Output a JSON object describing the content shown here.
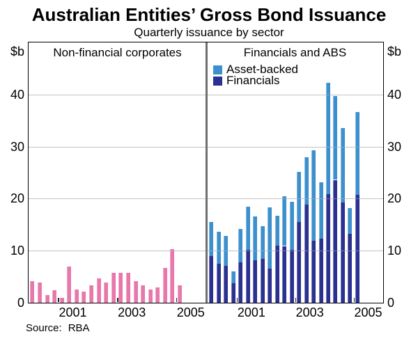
{
  "page": {
    "title": "Australian Entities’ Gross Bond Issuance",
    "subtitle": "Quarterly issuance by sector",
    "unit_left": "$b",
    "unit_right": "$b",
    "source_label": "Source:",
    "source_value": "RBA"
  },
  "colors": {
    "pink": "#E877AC",
    "financials_navy": "#2B3191",
    "asset_backed_blue": "#3D90CE",
    "gridline": "#C3C3C3",
    "divider_gray": "#707070",
    "frame_black": "#000000"
  },
  "chart_data": [
    {
      "type": "bar",
      "panel": "left",
      "title": "Non-financial corporates",
      "ylabel": "$b",
      "ylim": [
        0,
        50
      ],
      "yticks": [
        0,
        10,
        20,
        30,
        40
      ],
      "grid": true,
      "x_axis_quarter_span": [
        "2000Q1",
        "2005Q4"
      ],
      "xtick_labels": [
        "2001",
        "2003",
        "2005"
      ],
      "categories": [
        "2000Q1",
        "2000Q2",
        "2000Q3",
        "2000Q4",
        "2001Q1",
        "2001Q2",
        "2001Q3",
        "2001Q4",
        "2002Q1",
        "2002Q2",
        "2002Q3",
        "2002Q4",
        "2003Q1",
        "2003Q2",
        "2003Q3",
        "2003Q4",
        "2004Q1",
        "2004Q2",
        "2004Q3",
        "2004Q4",
        "2005Q1"
      ],
      "values": [
        4.2,
        3.9,
        1.5,
        2.4,
        0.9,
        6.9,
        2.6,
        2.2,
        3.3,
        4.7,
        3.9,
        5.7,
        5.7,
        5.7,
        4.1,
        3.4,
        2.5,
        2.9,
        6.7,
        10.3,
        3.3
      ],
      "bar_color": "#E877AC"
    },
    {
      "type": "stacked-bar",
      "panel": "right",
      "title": "Financials and ABS",
      "ylabel": "$b",
      "ylim": [
        0,
        50
      ],
      "yticks": [
        0,
        10,
        20,
        30,
        40
      ],
      "grid": true,
      "legend_position": "top-left",
      "x_axis_quarter_span": [
        "2000Q1",
        "2005Q4"
      ],
      "xtick_labels": [
        "2001",
        "2003",
        "2005"
      ],
      "categories": [
        "2000Q1",
        "2000Q2",
        "2000Q3",
        "2000Q4",
        "2001Q1",
        "2001Q2",
        "2001Q3",
        "2001Q4",
        "2002Q1",
        "2002Q2",
        "2002Q3",
        "2002Q4",
        "2003Q1",
        "2003Q2",
        "2003Q3",
        "2003Q4",
        "2004Q1",
        "2004Q2",
        "2004Q3",
        "2004Q4",
        "2005Q1"
      ],
      "series": [
        {
          "name": "Financials",
          "color": "#2B3191",
          "values": [
            8.9,
            7.5,
            7.1,
            3.8,
            7.7,
            10.2,
            8.1,
            8.4,
            6.5,
            11.0,
            10.9,
            10.2,
            15.5,
            18.8,
            11.9,
            12.3,
            20.8,
            23.6,
            19.3,
            13.3,
            20.7
          ]
        },
        {
          "name": "Asset-backed",
          "color": "#3D90CE",
          "values": [
            6.6,
            6.2,
            5.8,
            2.2,
            6.5,
            8.3,
            8.5,
            6.3,
            11.8,
            5.7,
            9.5,
            9.2,
            9.7,
            9.2,
            17.4,
            10.8,
            21.4,
            16.1,
            14.2,
            4.9,
            16.0
          ]
        }
      ]
    }
  ]
}
